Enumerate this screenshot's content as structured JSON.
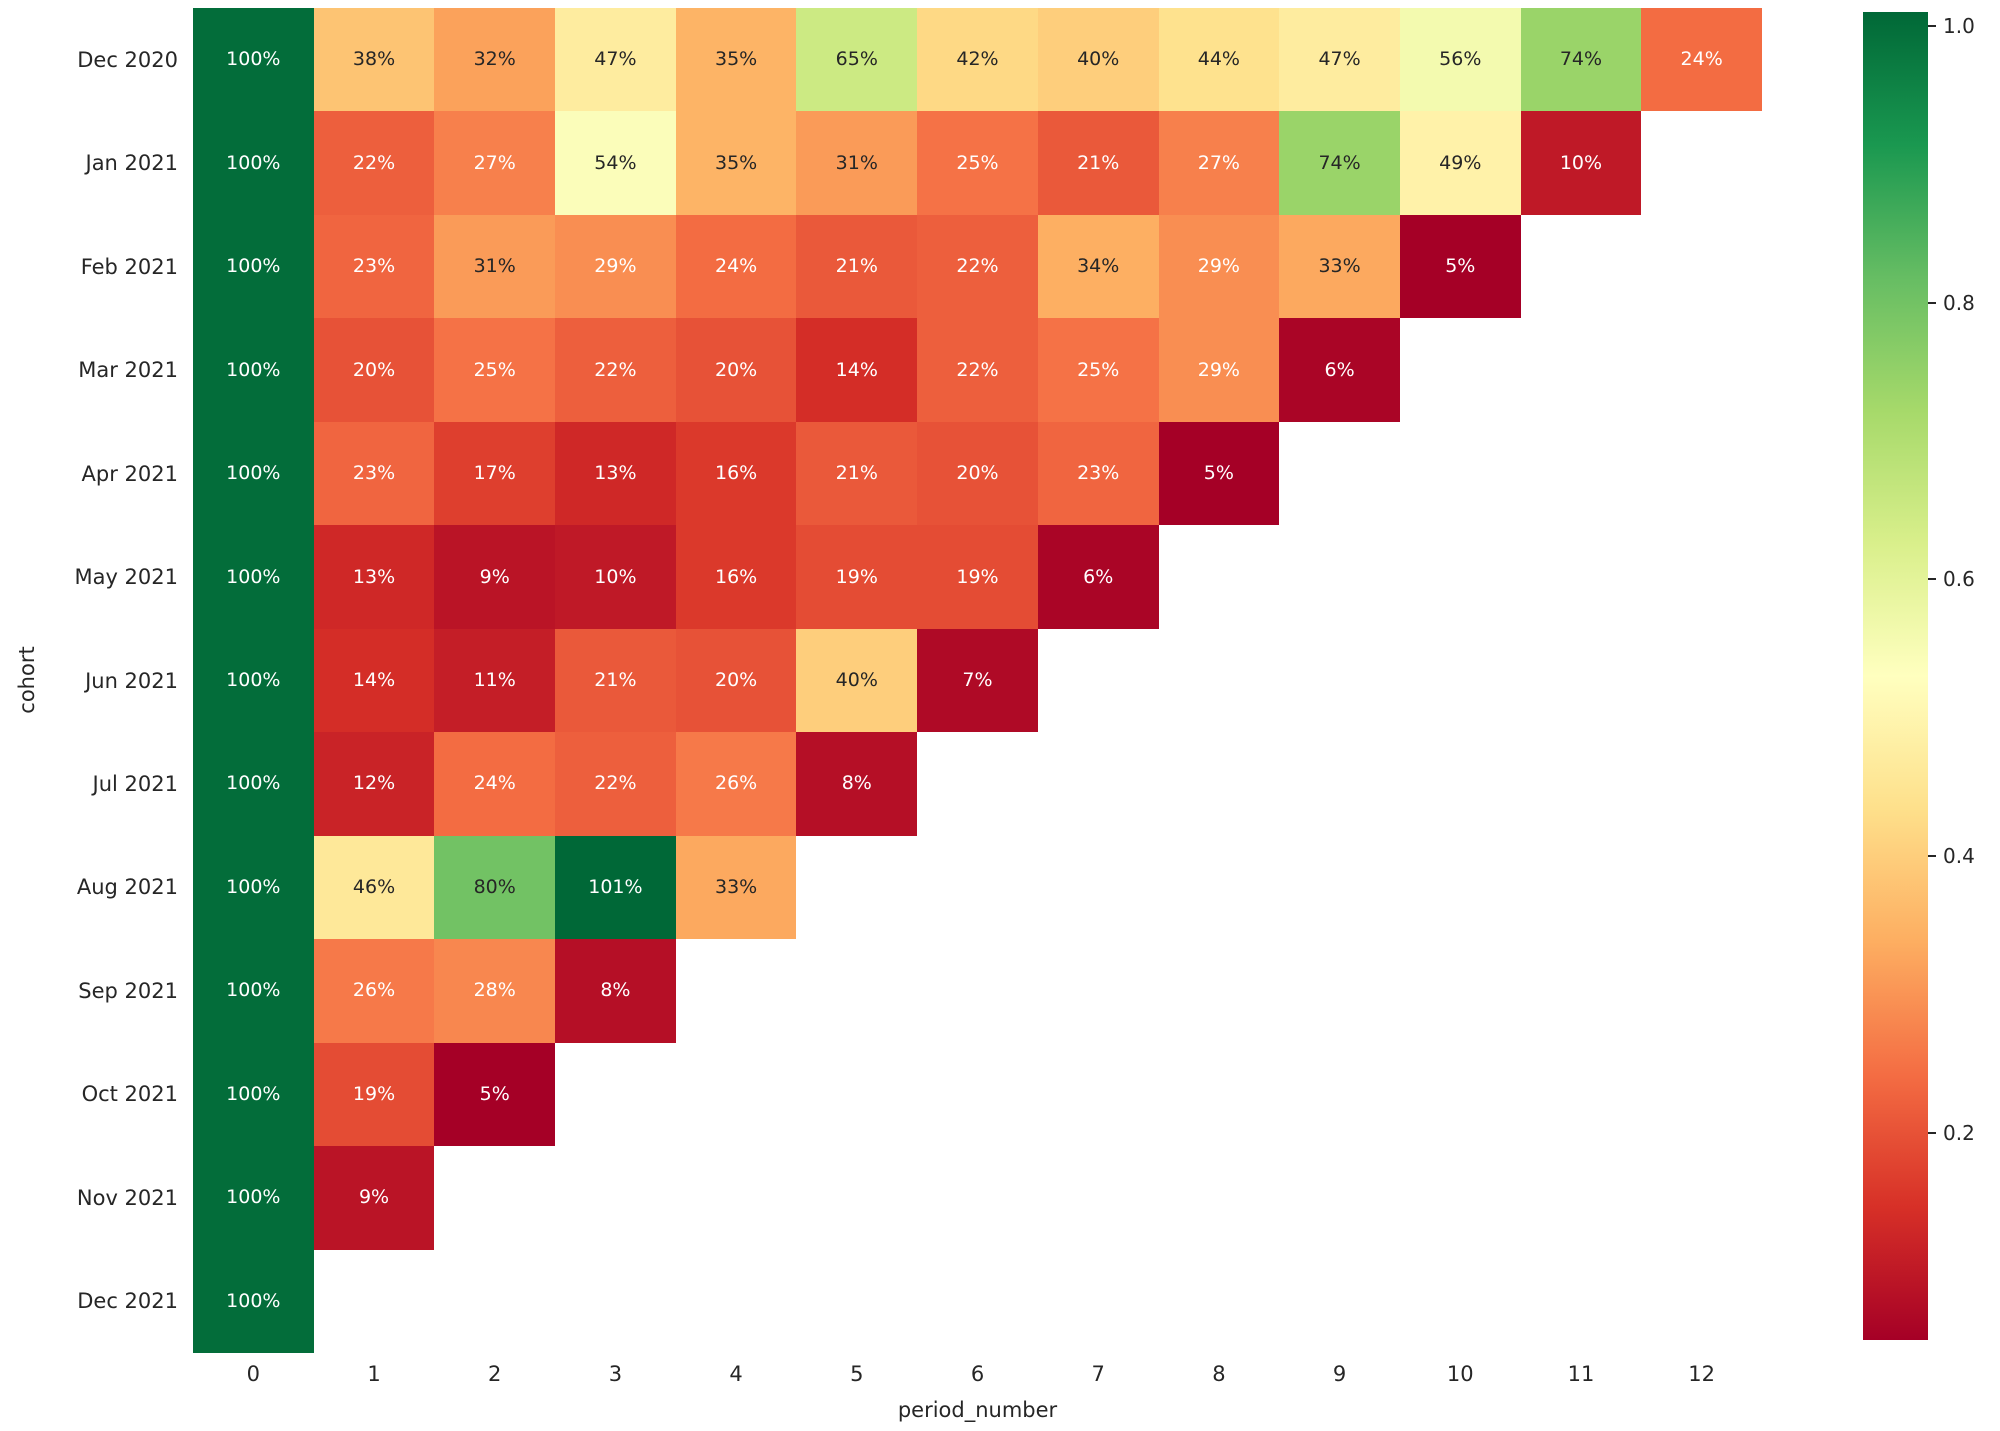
{
  "figure": {
    "background_color": "#ffffff",
    "text_color": "#262626"
  },
  "chart_data": {
    "type": "heatmap",
    "title": "",
    "xlabel": "period_number",
    "ylabel": "cohort",
    "x_tick_labels": [
      "0",
      "1",
      "2",
      "3",
      "4",
      "5",
      "6",
      "7",
      "8",
      "9",
      "10",
      "11",
      "12"
    ],
    "y_tick_labels": [
      "Dec 2020",
      "Jan 2021",
      "Feb 2021",
      "Mar 2021",
      "Apr 2021",
      "May 2021",
      "Jun 2021",
      "Jul 2021",
      "Aug 2021",
      "Sep 2021",
      "Oct 2021",
      "Nov 2021",
      "Dec 2021"
    ],
    "value_format": "percent",
    "rows": [
      {
        "cohort": "Dec 2020",
        "values_pct": [
          100,
          38,
          32,
          47,
          35,
          65,
          42,
          40,
          44,
          47,
          56,
          74,
          24
        ]
      },
      {
        "cohort": "Jan 2021",
        "values_pct": [
          100,
          22,
          27,
          54,
          35,
          31,
          25,
          21,
          27,
          74,
          49,
          10
        ]
      },
      {
        "cohort": "Feb 2021",
        "values_pct": [
          100,
          23,
          31,
          29,
          24,
          21,
          22,
          34,
          29,
          33,
          5
        ]
      },
      {
        "cohort": "Mar 2021",
        "values_pct": [
          100,
          20,
          25,
          22,
          20,
          14,
          22,
          25,
          29,
          6
        ]
      },
      {
        "cohort": "Apr 2021",
        "values_pct": [
          100,
          23,
          17,
          13,
          16,
          21,
          20,
          23,
          5
        ]
      },
      {
        "cohort": "May 2021",
        "values_pct": [
          100,
          13,
          9,
          10,
          16,
          19,
          19,
          6
        ]
      },
      {
        "cohort": "Jun 2021",
        "values_pct": [
          100,
          14,
          11,
          21,
          20,
          40,
          7
        ]
      },
      {
        "cohort": "Jul 2021",
        "values_pct": [
          100,
          12,
          24,
          22,
          26,
          8
        ]
      },
      {
        "cohort": "Aug 2021",
        "values_pct": [
          100,
          46,
          80,
          101,
          33
        ]
      },
      {
        "cohort": "Sep 2021",
        "values_pct": [
          100,
          26,
          28,
          8
        ]
      },
      {
        "cohort": "Oct 2021",
        "values_pct": [
          100,
          19,
          5
        ]
      },
      {
        "cohort": "Nov 2021",
        "values_pct": [
          100,
          9
        ]
      },
      {
        "cohort": "Dec 2021",
        "values_pct": [
          100
        ]
      }
    ],
    "colorbar": {
      "tick_labels": [
        "1.0",
        "0.8",
        "0.6",
        "0.4",
        "0.2"
      ],
      "tick_values": [
        1.0,
        0.8,
        0.6,
        0.4,
        0.2
      ],
      "vmin": 0.05,
      "vmax": 1.01,
      "colormap_name": "RdYlGn",
      "colormap_anchors": [
        "#a50026",
        "#d73027",
        "#f46d43",
        "#fdae61",
        "#fee08b",
        "#ffffbf",
        "#d9ef8b",
        "#a6d96a",
        "#66bd63",
        "#1a9850",
        "#006837"
      ]
    },
    "annotation_text_colors": {
      "on_light_cell": "#262626",
      "on_dark_cell": "#ffffff"
    },
    "layout": {
      "grid_on": false,
      "legend_position": "colorbar-right",
      "n_rows": 13,
      "n_cols": 13
    }
  }
}
